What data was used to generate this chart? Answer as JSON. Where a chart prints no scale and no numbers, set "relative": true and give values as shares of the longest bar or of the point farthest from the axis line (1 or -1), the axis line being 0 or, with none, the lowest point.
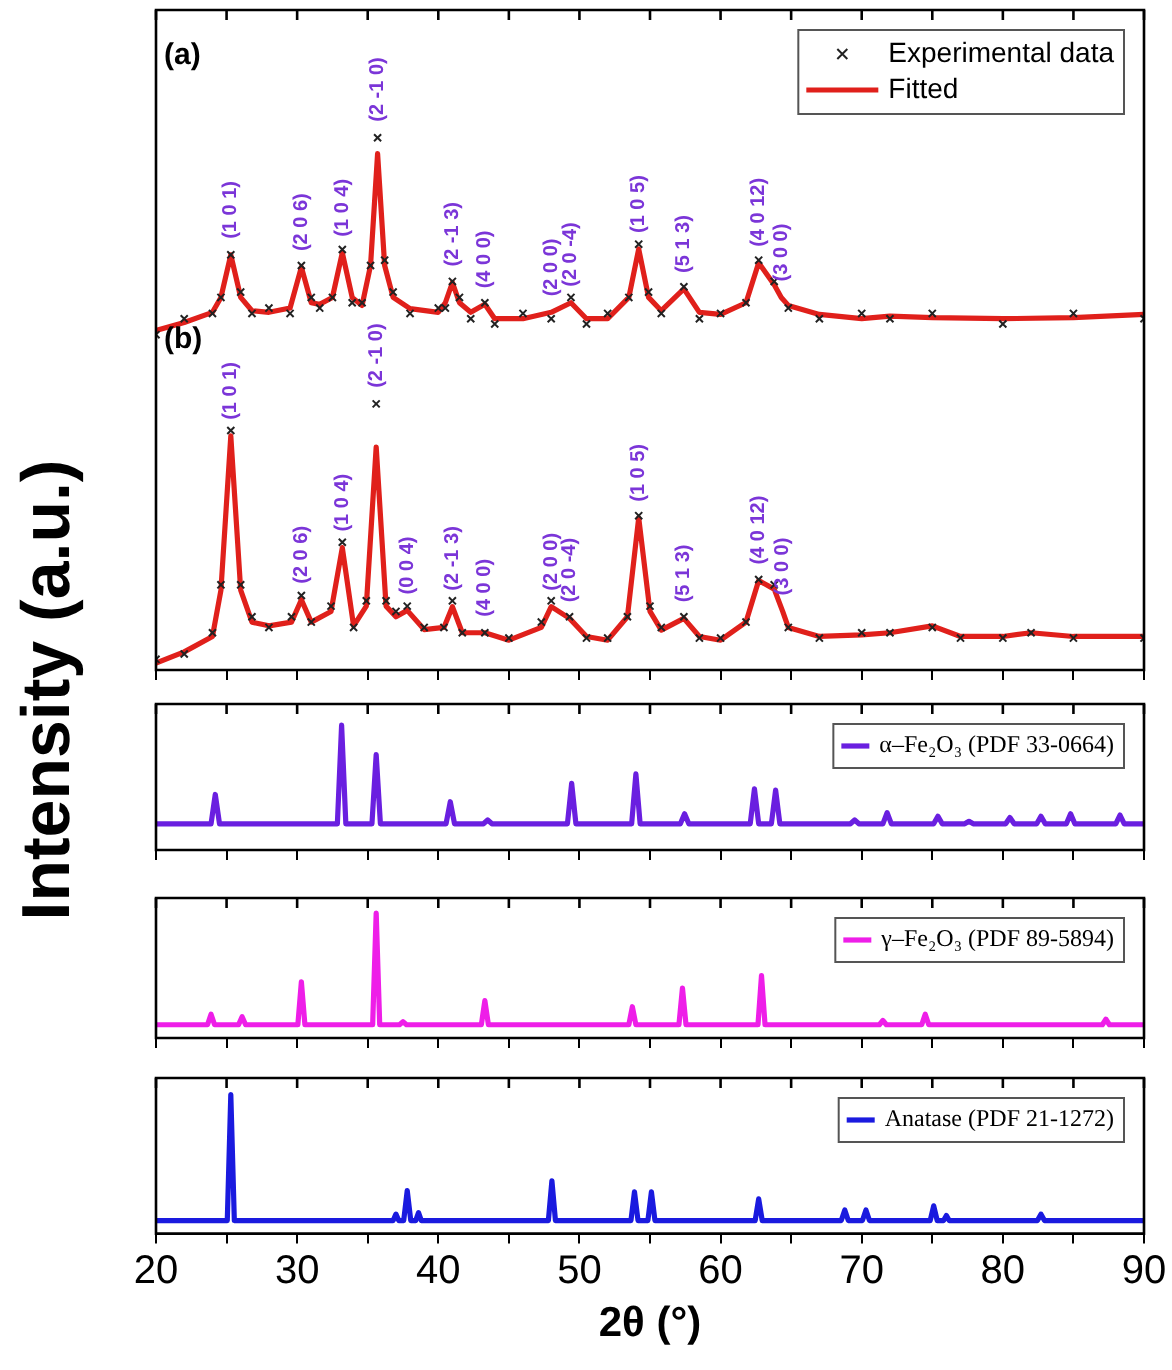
{
  "chart_data": [
    {
      "type": "line",
      "ylabel": "Intensity (a.u.)",
      "relative": true,
      "xlim": [
        20,
        90
      ],
      "xticks": [
        20,
        {
          "value": 25,
          "label": null
        },
        30,
        {
          "value": 35,
          "label": null
        },
        40,
        {
          "value": 45,
          "label": null
        },
        50,
        {
          "value": 55,
          "label": null
        },
        60,
        {
          "value": 65,
          "label": null
        },
        70,
        {
          "value": 75,
          "label": null
        },
        80,
        {
          "value": 85,
          "label": null
        },
        90
      ],
      "tick_labels": false,
      "grid": false,
      "legend": "top right",
      "annotations": [
        "(a)",
        "(b)",
        {
          "text": "(1 0 1)",
          "x": 25.3,
          "y": 0.78
        },
        {
          "text": "(2 0 6)",
          "x": 30.3,
          "y": 0.757
        },
        {
          "text": "(1 0 4)",
          "x": 33.2,
          "y": 0.784
        },
        {
          "text": "(2 -1 0)",
          "x": 35.7,
          "y": 1
        },
        {
          "text": "(2 -1 3)",
          "x": 41,
          "y": 0.728
        },
        {
          "text": "(4 0 0)",
          "x": 43.3,
          "y": 0.687
        },
        {
          "text": "(2 0 0)",
          "x": 48,
          "y": 0.672
        },
        {
          "text": "(2 0 -4)",
          "x": 49.4,
          "y": 0.69
        },
        {
          "text": "(1 0 5)",
          "x": 54.2,
          "y": 0.791
        },
        {
          "text": "(5 1 3)",
          "x": 57.4,
          "y": 0.716
        },
        {
          "text": "(4 0 12)",
          "x": 62.7,
          "y": 0.765
        },
        {
          "text": "(3 0 0)",
          "x": 64.3,
          "y": 0.7
        },
        {
          "text": "(1 0 1)",
          "x": 25.3,
          "y": 0.44
        },
        {
          "text": "(2 0 6)",
          "x": 30.3,
          "y": 0.132
        },
        {
          "text": "(1 0 4)",
          "x": 33.2,
          "y": 0.23
        },
        {
          "text": "(2 -1 0)",
          "x": 35.6,
          "y": 0.5
        },
        {
          "text": "(0 0 4)",
          "x": 37.8,
          "y": 0.112
        },
        {
          "text": "(2 -1 3)",
          "x": 41,
          "y": 0.119
        },
        {
          "text": "(4 0 0)",
          "x": 43.3,
          "y": 0.07
        },
        {
          "text": "(2 0 0)",
          "x": 48,
          "y": 0.119
        },
        {
          "text": "(2 0 -4)",
          "x": 49.3,
          "y": 0.097
        },
        {
          "text": "(1 0 5)",
          "x": 54.2,
          "y": 0.286
        },
        {
          "text": "(5 1 3)",
          "x": 57.4,
          "y": 0.097
        },
        {
          "text": "(4 0 12)",
          "x": 62.7,
          "y": 0.168
        },
        {
          "text": "(3 0 0)",
          "x": 64.4,
          "y": 0.11
        }
      ],
      "series": [
        {
          "name": "Experimental data",
          "type": "scatter",
          "marker": "cross",
          "color": "#222222",
          "x": [
            20,
            22,
            24,
            24.6,
            25.3,
            26,
            26.8,
            28,
            29.5,
            30.3,
            31,
            31.6,
            32.5,
            33.2,
            33.9,
            34.6,
            35.2,
            35.7,
            36.2,
            36.8,
            38,
            40,
            40.5,
            41,
            41.5,
            42.3,
            43.3,
            44,
            46,
            48,
            49.4,
            50.5,
            52,
            53.5,
            54.2,
            54.9,
            55.8,
            57.4,
            58.5,
            60,
            61.8,
            62.7,
            63.8,
            64.8,
            67,
            70,
            72,
            75,
            80,
            85,
            90
          ],
          "values": [
            0.63,
            0.66,
            0.67,
            0.7,
            0.78,
            0.71,
            0.67,
            0.68,
            0.67,
            0.76,
            0.7,
            0.68,
            0.7,
            0.79,
            0.69,
            0.69,
            0.76,
            1,
            0.77,
            0.71,
            0.67,
            0.68,
            0.68,
            0.73,
            0.7,
            0.66,
            0.69,
            0.65,
            0.67,
            0.66,
            0.7,
            0.65,
            0.67,
            0.7,
            0.8,
            0.71,
            0.67,
            0.72,
            0.66,
            0.67,
            0.69,
            0.77,
            0.73,
            0.68,
            0.66,
            0.67,
            0.66,
            0.67,
            0.65,
            0.67,
            0.66
          ]
        },
        {
          "name": "Fitted",
          "color": "#e0201b",
          "x": [
            20,
            22,
            24,
            24.6,
            25.3,
            26,
            26.8,
            28,
            29.5,
            30.3,
            31,
            31.6,
            32.5,
            33.2,
            33.9,
            34.6,
            35.2,
            35.7,
            36.2,
            36.8,
            38,
            40,
            40.5,
            41,
            41.5,
            42.3,
            43.3,
            44,
            46,
            48,
            49.4,
            50.5,
            52,
            53.5,
            54.2,
            54.9,
            55.8,
            57.4,
            58.5,
            60,
            61.8,
            62.7,
            63.8,
            64.3,
            64.8,
            67,
            70,
            72,
            75,
            80,
            85,
            90
          ],
          "values": [
            0.638,
            0.653,
            0.672,
            0.7,
            0.78,
            0.7,
            0.675,
            0.672,
            0.68,
            0.757,
            0.69,
            0.687,
            0.7,
            0.784,
            0.7,
            0.685,
            0.76,
            0.97,
            0.76,
            0.7,
            0.679,
            0.672,
            0.69,
            0.728,
            0.69,
            0.672,
            0.687,
            0.66,
            0.66,
            0.672,
            0.69,
            0.66,
            0.66,
            0.7,
            0.791,
            0.7,
            0.675,
            0.716,
            0.672,
            0.668,
            0.69,
            0.765,
            0.724,
            0.7,
            0.685,
            0.668,
            0.66,
            0.665,
            0.662,
            0.66,
            0.662,
            0.668
          ]
        },
        {
          "type": "scatter",
          "marker": "cross",
          "color": "#222222",
          "x": [
            20,
            22,
            24,
            24.6,
            25.3,
            26,
            26.8,
            28,
            29.6,
            30.3,
            31,
            32.4,
            33.2,
            34,
            34.9,
            35.6,
            36.3,
            37,
            37.8,
            39,
            40.4,
            41,
            41.7,
            43.3,
            45,
            47.3,
            48,
            49.3,
            50.5,
            52,
            53.4,
            54.2,
            55,
            55.8,
            57.4,
            58.5,
            60,
            61.8,
            62.7,
            63.8,
            64.8,
            67,
            70,
            72,
            75,
            77,
            80,
            82,
            85,
            90
          ],
          "values": [
            0.02,
            0.03,
            0.07,
            0.16,
            0.45,
            0.16,
            0.1,
            0.08,
            0.1,
            0.14,
            0.09,
            0.12,
            0.24,
            0.08,
            0.13,
            0.5,
            0.13,
            0.11,
            0.12,
            0.08,
            0.08,
            0.13,
            0.07,
            0.07,
            0.06,
            0.09,
            0.13,
            0.1,
            0.06,
            0.06,
            0.1,
            0.29,
            0.12,
            0.08,
            0.1,
            0.06,
            0.06,
            0.09,
            0.17,
            0.16,
            0.08,
            0.06,
            0.07,
            0.07,
            0.08,
            0.06,
            0.06,
            0.07,
            0.06,
            0.06
          ]
        },
        {
          "color": "#e0201b",
          "x": [
            20,
            22,
            24,
            24.6,
            25.3,
            26,
            26.8,
            28,
            29.6,
            30.3,
            31,
            32.4,
            33.2,
            34,
            34.9,
            35.6,
            36.3,
            37,
            37.8,
            39,
            40.4,
            41,
            41.7,
            43.3,
            45,
            47.3,
            48,
            49.3,
            50.5,
            52,
            53.4,
            54.2,
            55,
            55.8,
            57.4,
            58.5,
            60,
            61.8,
            62.7,
            63.8,
            64.4,
            64.8,
            67,
            70,
            72,
            75,
            77,
            80,
            82,
            85,
            90
          ],
          "values": [
            0.013,
            0.034,
            0.063,
            0.15,
            0.44,
            0.15,
            0.09,
            0.083,
            0.09,
            0.132,
            0.09,
            0.11,
            0.23,
            0.083,
            0.12,
            0.419,
            0.12,
            0.1,
            0.112,
            0.076,
            0.08,
            0.119,
            0.07,
            0.07,
            0.056,
            0.08,
            0.119,
            0.097,
            0.063,
            0.056,
            0.1,
            0.286,
            0.11,
            0.075,
            0.097,
            0.063,
            0.056,
            0.09,
            0.168,
            0.152,
            0.11,
            0.08,
            0.063,
            0.066,
            0.07,
            0.083,
            0.063,
            0.063,
            0.07,
            0.063,
            0.063
          ]
        }
      ]
    },
    {
      "type": "line",
      "relative": true,
      "xlim": [
        20,
        90
      ],
      "xticks": [
        20,
        {
          "value": 25,
          "label": null
        },
        30,
        {
          "value": 35,
          "label": null
        },
        40,
        {
          "value": 45,
          "label": null
        },
        50,
        {
          "value": 55,
          "label": null
        },
        60,
        {
          "value": 65,
          "label": null
        },
        70,
        {
          "value": 75,
          "label": null
        },
        80,
        {
          "value": 85,
          "label": null
        },
        90
      ],
      "tick_labels": false,
      "grid": false,
      "legend": "top right",
      "series": [
        {
          "name": "α–Fe₂O₃ (PDF 33-0664)",
          "color": "#6a1fe0",
          "x": [
            20,
            23.9,
            24.2,
            24.5,
            32.85,
            33.15,
            33.45,
            35.3,
            35.6,
            35.9,
            40.55,
            40.85,
            41.15,
            43.2,
            43.5,
            43.8,
            49.15,
            49.45,
            49.75,
            53.7,
            54,
            54.3,
            57.15,
            57.45,
            57.75,
            62.1,
            62.4,
            62.7,
            63.6,
            63.9,
            64.2,
            69.2,
            69.5,
            69.8,
            71.5,
            71.8,
            72.1,
            75.1,
            75.4,
            75.7,
            77.3,
            77.6,
            77.9,
            80.2,
            80.5,
            80.8,
            82.4,
            82.7,
            83,
            84.5,
            84.8,
            85.1,
            88,
            88.3,
            88.6,
            90
          ],
          "values": [
            0.21,
            0.21,
            0.445,
            0.21,
            0.21,
            1,
            0.21,
            0.21,
            0.765,
            0.21,
            0.21,
            0.387,
            0.21,
            0.21,
            0.24,
            0.21,
            0.21,
            0.535,
            0.21,
            0.21,
            0.61,
            0.21,
            0.21,
            0.29,
            0.21,
            0.21,
            0.49,
            0.21,
            0.21,
            0.48,
            0.21,
            0.21,
            0.24,
            0.21,
            0.21,
            0.3,
            0.21,
            0.21,
            0.27,
            0.21,
            0.21,
            0.23,
            0.21,
            0.21,
            0.26,
            0.21,
            0.21,
            0.27,
            0.21,
            0.21,
            0.29,
            0.21,
            0.21,
            0.28,
            0.21,
            0.21
          ]
        }
      ]
    },
    {
      "type": "line",
      "relative": true,
      "xlim": [
        20,
        90
      ],
      "xticks": [
        20,
        {
          "value": 25,
          "label": null
        },
        30,
        {
          "value": 35,
          "label": null
        },
        40,
        {
          "value": 45,
          "label": null
        },
        50,
        {
          "value": 55,
          "label": null
        },
        60,
        {
          "value": 65,
          "label": null
        },
        70,
        {
          "value": 75,
          "label": null
        },
        80,
        {
          "value": 85,
          "label": null
        },
        90
      ],
      "tick_labels": false,
      "grid": false,
      "legend": "top right",
      "series": [
        {
          "name": "γ–Fe₂O₃ (PDF 89-5894)",
          "color": "#ee1ee8",
          "x": [
            20,
            23.65,
            23.9,
            24.15,
            25.85,
            26.1,
            26.35,
            30.05,
            30.3,
            30.55,
            35.35,
            35.6,
            35.85,
            37.25,
            37.5,
            37.75,
            43.05,
            43.3,
            43.55,
            53.5,
            53.75,
            54,
            57.05,
            57.3,
            57.55,
            62.65,
            62.9,
            63.15,
            71.25,
            71.5,
            71.75,
            74.25,
            74.5,
            74.75,
            87.05,
            87.3,
            87.55,
            90
          ],
          "values": [
            0.106,
            0.106,
            0.19,
            0.106,
            0.106,
            0.17,
            0.106,
            0.106,
            0.45,
            0.106,
            0.106,
            1,
            0.106,
            0.106,
            0.13,
            0.106,
            0.106,
            0.3,
            0.106,
            0.106,
            0.25,
            0.106,
            0.106,
            0.4,
            0.106,
            0.106,
            0.5,
            0.106,
            0.106,
            0.14,
            0.106,
            0.106,
            0.19,
            0.106,
            0.106,
            0.15,
            0.106,
            0.106
          ]
        }
      ]
    },
    {
      "type": "line",
      "relative": true,
      "xlabel": "2θ (°)",
      "xlim": [
        20,
        90
      ],
      "xticks": [
        20,
        {
          "value": 25,
          "label": null
        },
        30,
        {
          "value": 35,
          "label": null
        },
        40,
        {
          "value": 45,
          "label": null
        },
        50,
        {
          "value": 55,
          "label": null
        },
        60,
        {
          "value": 65,
          "label": null
        },
        70,
        {
          "value": 75,
          "label": null
        },
        80,
        {
          "value": 85,
          "label": null
        },
        90
      ],
      "grid": false,
      "legend": "top right",
      "series": [
        {
          "name": "Anatase (PDF 21-1272)",
          "color": "#1a1adf",
          "x": [
            20,
            25.05,
            25.3,
            25.55,
            36.8,
            37,
            37.2,
            37.55,
            37.8,
            38.05,
            38.4,
            38.6,
            38.8,
            47.8,
            48.05,
            48.3,
            53.65,
            53.9,
            54.15,
            54.85,
            55.1,
            55.35,
            62.45,
            62.7,
            62.95,
            68.55,
            68.8,
            69.05,
            70.05,
            70.3,
            70.55,
            74.85,
            75.1,
            75.35,
            75.8,
            76,
            76.2,
            82.45,
            82.7,
            82.95,
            90
          ],
          "values": [
            0.094,
            0.094,
            1,
            0.094,
            0.094,
            0.14,
            0.094,
            0.094,
            0.31,
            0.094,
            0.094,
            0.15,
            0.094,
            0.094,
            0.38,
            0.094,
            0.094,
            0.3,
            0.094,
            0.094,
            0.3,
            0.094,
            0.094,
            0.25,
            0.094,
            0.094,
            0.17,
            0.094,
            0.094,
            0.17,
            0.094,
            0.094,
            0.2,
            0.094,
            0.094,
            0.13,
            0.094,
            0.094,
            0.14,
            0.094,
            0.094
          ]
        }
      ]
    }
  ]
}
